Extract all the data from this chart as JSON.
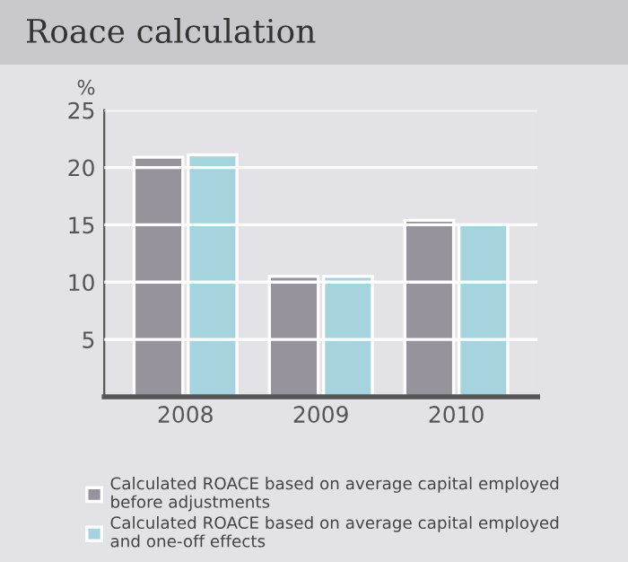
{
  "chart_data": {
    "type": "bar",
    "title": "Roace calculation",
    "ylabel": "%",
    "categories": [
      "2008",
      "2009",
      "2010"
    ],
    "series": [
      {
        "name": "Calculated ROACE based on average capital employed\nbefore adjustments",
        "color": "#96939d",
        "values": [
          20.9,
          10.5,
          15.4
        ]
      },
      {
        "name": "Calculated ROACE based on average capital employed\nand one-off effects",
        "color": "#a5d3de",
        "values": [
          21.1,
          10.5,
          15.0
        ]
      }
    ],
    "ylim": [
      0,
      25
    ],
    "yticks": [
      5,
      10,
      15,
      20,
      25
    ],
    "grid": "y",
    "legend": "bottom"
  }
}
